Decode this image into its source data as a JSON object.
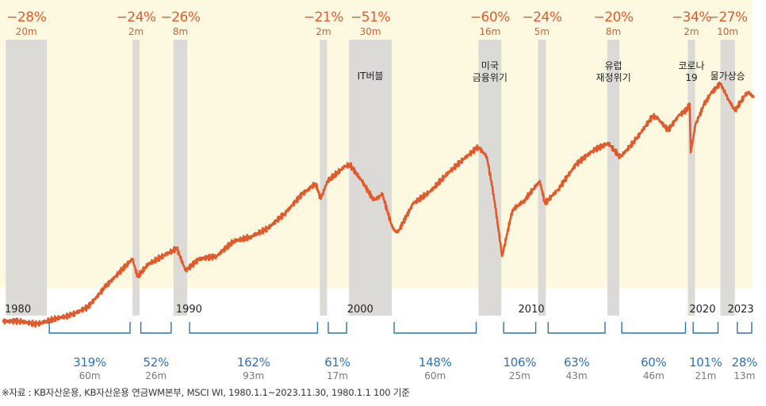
{
  "chart_data": {
    "type": "line",
    "title": "",
    "x_range": [
      1980.0,
      2023.92
    ],
    "years": [
      1980,
      1990,
      2000,
      2010,
      2020,
      2023
    ],
    "series": [
      {
        "name": "MSCI WI",
        "points": [
          [
            1980.0,
            100
          ],
          [
            1981.0,
            100
          ],
          [
            1982.0,
            97
          ],
          [
            1983.0,
            102
          ],
          [
            1984.0,
            106
          ],
          [
            1985.0,
            115
          ],
          [
            1986.0,
            140
          ],
          [
            1987.6,
            185
          ],
          [
            1987.9,
            155
          ],
          [
            1988.5,
            175
          ],
          [
            1989.9,
            200
          ],
          [
            1990.2,
            205
          ],
          [
            1990.7,
            165
          ],
          [
            1991.5,
            185
          ],
          [
            1992.5,
            190
          ],
          [
            1993.5,
            220
          ],
          [
            1994.5,
            230
          ],
          [
            1995.5,
            250
          ],
          [
            1996.5,
            290
          ],
          [
            1997.5,
            350
          ],
          [
            1998.3,
            390
          ],
          [
            1998.6,
            335
          ],
          [
            1999.0,
            400
          ],
          [
            2000.0,
            460
          ],
          [
            2000.3,
            470
          ],
          [
            2001.0,
            400
          ],
          [
            2001.7,
            330
          ],
          [
            2002.2,
            350
          ],
          [
            2002.8,
            250
          ],
          [
            2003.1,
            240
          ],
          [
            2004.0,
            320
          ],
          [
            2005.0,
            360
          ],
          [
            2006.0,
            430
          ],
          [
            2007.0,
            500
          ],
          [
            2007.8,
            560
          ],
          [
            2008.3,
            510
          ],
          [
            2008.7,
            350
          ],
          [
            2009.2,
            190
          ],
          [
            2009.8,
            300
          ],
          [
            2010.5,
            330
          ],
          [
            2011.4,
            400
          ],
          [
            2011.7,
            320
          ],
          [
            2012.5,
            370
          ],
          [
            2013.5,
            470
          ],
          [
            2014.5,
            540
          ],
          [
            2015.4,
            580
          ],
          [
            2016.1,
            505
          ],
          [
            2017.0,
            600
          ],
          [
            2018.0,
            760
          ],
          [
            2018.3,
            740
          ],
          [
            2018.9,
            660
          ],
          [
            2019.5,
            760
          ],
          [
            2020.0,
            810
          ],
          [
            2020.15,
            860
          ],
          [
            2020.22,
            530
          ],
          [
            2020.5,
            700
          ],
          [
            2021.0,
            850
          ],
          [
            2021.4,
            950
          ],
          [
            2021.95,
            1050
          ],
          [
            2022.4,
            900
          ],
          [
            2022.8,
            800
          ],
          [
            2023.4,
            935
          ],
          [
            2023.6,
            960
          ],
          [
            2023.92,
            910
          ]
        ]
      }
    ],
    "drawdowns": [
      {
        "start": 1980.2,
        "end": 1982.6,
        "decline": "−28%",
        "duration": "20m"
      },
      {
        "start": 1987.6,
        "end": 1987.95,
        "decline": "−24%",
        "duration": "2m"
      },
      {
        "start": 1990.0,
        "end": 1990.8,
        "decline": "−26%",
        "duration": "8m"
      },
      {
        "start": 1998.55,
        "end": 1998.9,
        "decline": "−21%",
        "duration": "2m"
      },
      {
        "start": 2000.25,
        "end": 2002.75,
        "decline": "−51%",
        "duration": "30m",
        "label": [
          "IT버블"
        ]
      },
      {
        "start": 2007.82,
        "end": 2009.15,
        "decline": "−60%",
        "duration": "16m",
        "label": [
          "미국",
          "금융위기"
        ]
      },
      {
        "start": 2011.3,
        "end": 2011.75,
        "decline": "−24%",
        "duration": "5m"
      },
      {
        "start": 2015.35,
        "end": 2016.05,
        "decline": "−20%",
        "duration": "8m",
        "label": [
          "유럽",
          "재정위기"
        ]
      },
      {
        "start": 2020.05,
        "end": 2020.22,
        "decline": "−34%",
        "duration": "2m",
        "label": [
          "코로나",
          "19"
        ]
      },
      {
        "start": 2021.95,
        "end": 2022.8,
        "decline": "−27%",
        "duration": "10m",
        "label": [
          "물가상승"
        ]
      }
    ],
    "rallies": [
      {
        "start": 1982.6,
        "end": 1987.6,
        "gain": "319%",
        "duration": "60m"
      },
      {
        "start": 1987.95,
        "end": 1990.0,
        "gain": "52%",
        "duration": "26m"
      },
      {
        "start": 1990.8,
        "end": 1998.55,
        "gain": "162%",
        "duration": "93m"
      },
      {
        "start": 1998.9,
        "end": 2000.25,
        "gain": "61%",
        "duration": "17m"
      },
      {
        "start": 2002.75,
        "end": 2007.82,
        "gain": "148%",
        "duration": "60m"
      },
      {
        "start": 2009.15,
        "end": 2011.3,
        "gain": "106%",
        "duration": "25m"
      },
      {
        "start": 2011.75,
        "end": 2015.35,
        "gain": "63%",
        "duration": "43m"
      },
      {
        "start": 2016.05,
        "end": 2020.05,
        "gain": "60%",
        "duration": "46m"
      },
      {
        "start": 2020.22,
        "end": 2021.95,
        "gain": "101%",
        "duration": "21m"
      },
      {
        "start": 2022.8,
        "end": 2023.92,
        "gain": "28%",
        "duration": "13m"
      }
    ]
  },
  "source_note": "※자료 : KB자산운용, KB자산운용 연금WM본부, MSCI WI, 1980.1.1~2023.11.30, 1980.1.1 100 기준",
  "colors": {
    "background_band": "#fdf8e0",
    "shade": "#dcdad6",
    "line": "#e05a2b",
    "decline": "#e05a2b",
    "gain": "#2a73b8",
    "bracket": "#2a73b8",
    "muted": "#777777",
    "dark": "#222222"
  }
}
